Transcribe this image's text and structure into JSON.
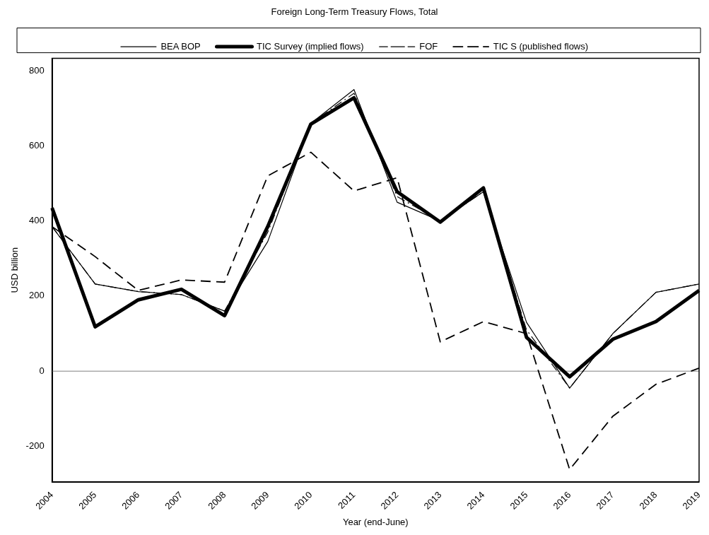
{
  "chart_data": {
    "type": "line",
    "title": "Foreign Long-Term Treasury Flows, Total",
    "xlabel": "Year (end-June)",
    "ylabel": "USD billion",
    "categories": [
      "2004",
      "2005",
      "2006",
      "2007",
      "2008",
      "2009",
      "2010",
      "2011",
      "2012",
      "2013",
      "2014",
      "2015",
      "2016",
      "2017",
      "2018",
      "2019"
    ],
    "series": [
      {
        "name": "BEA BOP",
        "color": "#000000",
        "line_style": "solid",
        "values": [
          385,
          232,
          212,
          204,
          160,
          345,
          660,
          750,
          450,
          400,
          478,
          130,
          -45,
          100,
          210,
          232
        ]
      },
      {
        "name": "TIC Survey (implied flows)",
        "color": "#000000",
        "line_style": "solid",
        "values": [
          435,
          118,
          190,
          218,
          148,
          385,
          658,
          728,
          478,
          397,
          488,
          90,
          -15,
          85,
          132,
          215
        ]
      },
      {
        "name": "FOF",
        "color": "#000000",
        "line_style": "dashdot",
        "values": [
          385,
          232,
          212,
          204,
          160,
          370,
          660,
          740,
          465,
          400,
          478,
          110,
          -45,
          100,
          210,
          232
        ]
      },
      {
        "name": "TIC S (published flows)",
        "color": "#000000",
        "line_style": "dashed",
        "values": [
          385,
          305,
          215,
          243,
          237,
          520,
          583,
          480,
          515,
          78,
          132,
          100,
          -262,
          -120,
          -35,
          8
        ]
      }
    ],
    "ylim": [
      -295,
      833
    ],
    "yticks": [
      -200,
      0,
      200,
      400,
      600,
      800
    ],
    "grid": false,
    "legend": "top",
    "marker": "none",
    "ref_lines": [
      {
        "axis": "y",
        "value": 0,
        "color": "#808080"
      }
    ]
  }
}
